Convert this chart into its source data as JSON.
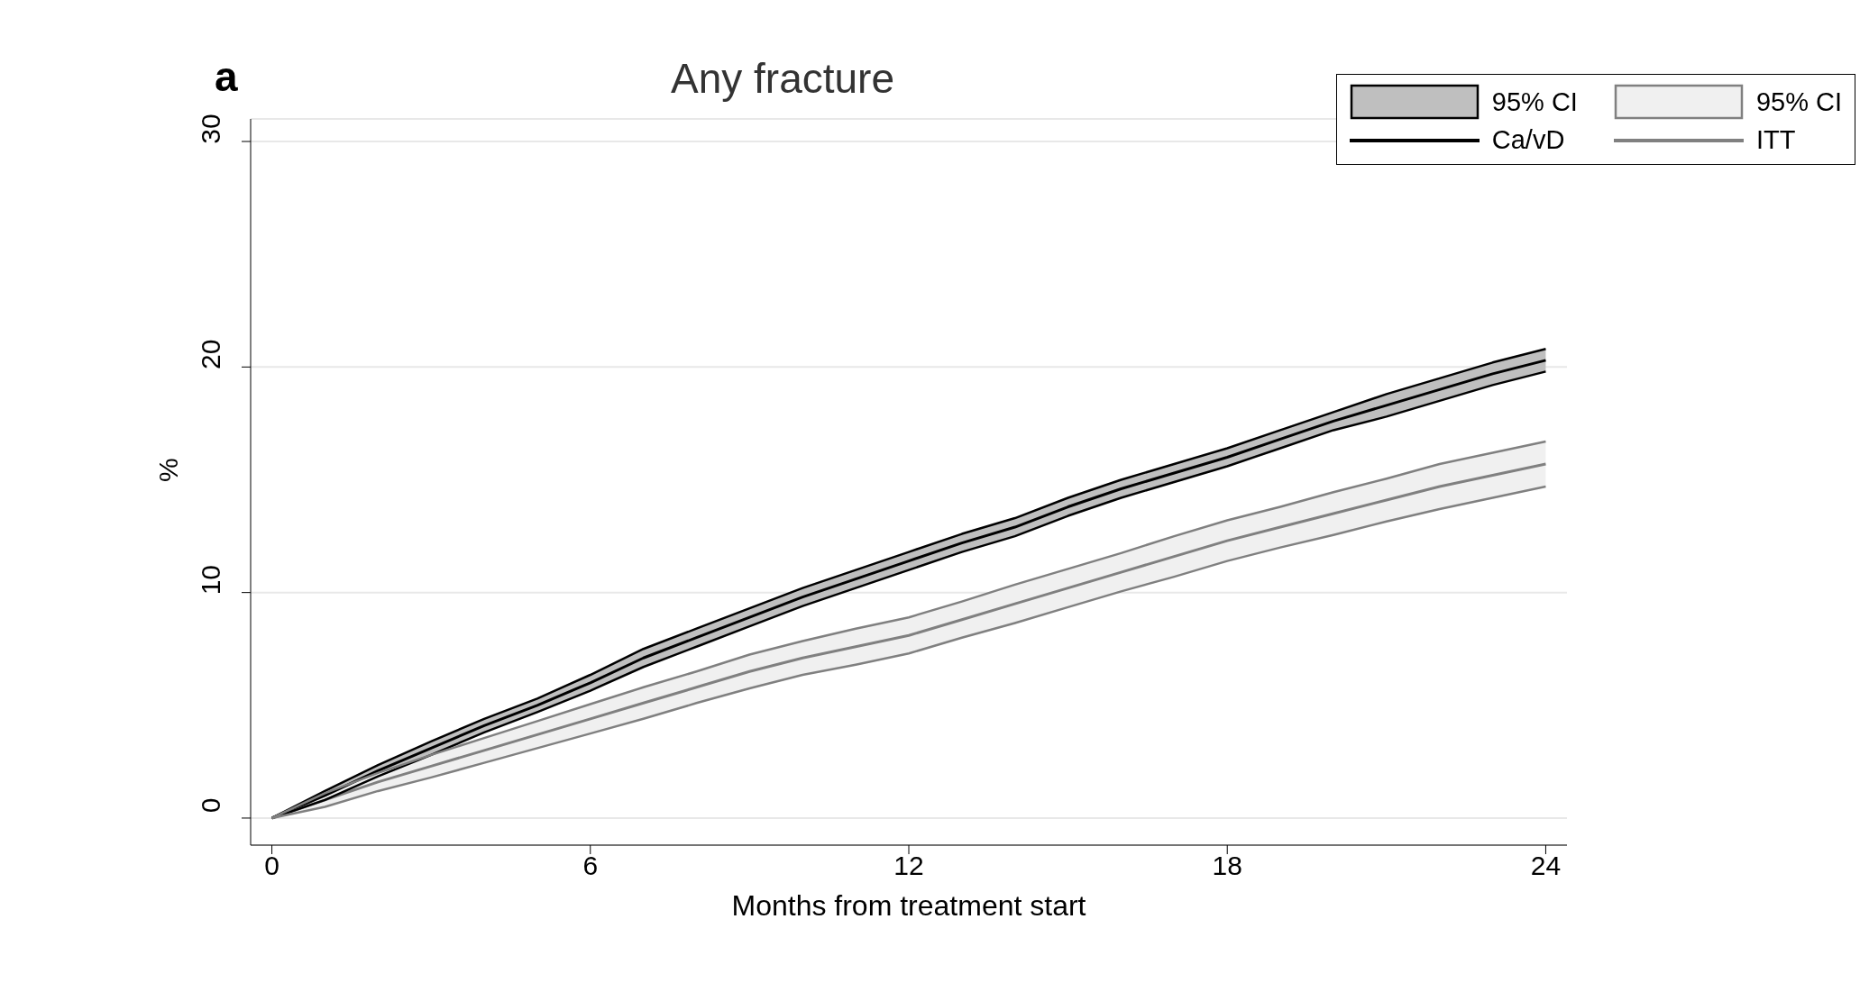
{
  "chart_data": {
    "type": "line",
    "title": "Any fracture",
    "xlabel": "Months from treatment start",
    "ylabel": "%",
    "annotations": [
      "a",
      "95% CI",
      "95% CI"
    ],
    "x": [
      0,
      1,
      2,
      3,
      4,
      5,
      6,
      7,
      8,
      9,
      10,
      11,
      12,
      13,
      14,
      15,
      16,
      17,
      18,
      19,
      20,
      21,
      22,
      23,
      24
    ],
    "xlim": [
      -0.4,
      24.4
    ],
    "xticks": [
      0,
      6,
      12,
      18,
      24
    ],
    "ylim": [
      -1.2,
      31
    ],
    "yticks": [
      0,
      10,
      20,
      30
    ],
    "grid": "y",
    "legend": "top right",
    "series": [
      {
        "name": "Ca/vD",
        "color": "#000000",
        "values": [
          0,
          1.0,
          2.1,
          3.1,
          4.1,
          5.0,
          6.0,
          7.1,
          8.0,
          8.9,
          9.8,
          10.6,
          11.4,
          12.2,
          12.9,
          13.8,
          14.6,
          15.3,
          16.0,
          16.8,
          17.6,
          18.3,
          19.0,
          19.7,
          20.3
        ],
        "lower": [
          0,
          0.8,
          1.85,
          2.8,
          3.8,
          4.7,
          5.65,
          6.7,
          7.6,
          8.5,
          9.4,
          10.2,
          11.0,
          11.8,
          12.5,
          13.4,
          14.2,
          14.9,
          15.6,
          16.4,
          17.2,
          17.8,
          18.5,
          19.2,
          19.8
        ],
        "upper": [
          0,
          1.2,
          2.35,
          3.4,
          4.4,
          5.3,
          6.35,
          7.5,
          8.4,
          9.3,
          10.2,
          11.0,
          11.8,
          12.6,
          13.3,
          14.2,
          15.0,
          15.7,
          16.4,
          17.2,
          18.0,
          18.8,
          19.5,
          20.2,
          20.8
        ]
      },
      {
        "name": "ITT",
        "color": "#808080",
        "values": [
          0,
          0.8,
          1.6,
          2.3,
          3.0,
          3.7,
          4.4,
          5.1,
          5.8,
          6.5,
          7.1,
          7.6,
          8.1,
          8.8,
          9.5,
          10.2,
          10.9,
          11.6,
          12.3,
          12.9,
          13.5,
          14.1,
          14.7,
          15.2,
          15.7
        ],
        "lower": [
          0,
          0.5,
          1.2,
          1.8,
          2.45,
          3.1,
          3.75,
          4.4,
          5.1,
          5.75,
          6.35,
          6.8,
          7.3,
          8.0,
          8.65,
          9.35,
          10.05,
          10.7,
          11.4,
          12.0,
          12.55,
          13.15,
          13.7,
          14.2,
          14.7
        ],
        "upper": [
          0,
          1.1,
          2.0,
          2.8,
          3.55,
          4.3,
          5.05,
          5.8,
          6.5,
          7.25,
          7.85,
          8.4,
          8.9,
          9.6,
          10.35,
          11.05,
          11.75,
          12.5,
          13.2,
          13.8,
          14.45,
          15.05,
          15.7,
          16.2,
          16.7
        ]
      },
      {
        "color": "#000000",
        "values": [
          0,
          0.8,
          1.85,
          2.8,
          3.8,
          4.7,
          5.65,
          6.7,
          7.6,
          8.5,
          9.4,
          10.2,
          11.0,
          11.8,
          12.5,
          13.4,
          14.2,
          14.9,
          15.6,
          16.4,
          17.2,
          17.8,
          18.5,
          19.2,
          19.8
        ]
      },
      {
        "color": "#000000",
        "values": [
          0,
          1.2,
          2.35,
          3.4,
          4.4,
          5.3,
          6.35,
          7.5,
          8.4,
          9.3,
          10.2,
          11.0,
          11.8,
          12.6,
          13.3,
          14.2,
          15.0,
          15.7,
          16.4,
          17.2,
          18.0,
          18.8,
          19.5,
          20.2,
          20.8
        ]
      },
      {
        "color": "#808080",
        "values": [
          0,
          0.5,
          1.2,
          1.8,
          2.45,
          3.1,
          3.75,
          4.4,
          5.1,
          5.75,
          6.35,
          6.8,
          7.3,
          8.0,
          8.65,
          9.35,
          10.05,
          10.7,
          11.4,
          12.0,
          12.55,
          13.15,
          13.7,
          14.2,
          14.7
        ]
      },
      {
        "color": "#808080",
        "values": [
          0,
          1.1,
          2.0,
          2.8,
          3.55,
          4.3,
          5.05,
          5.8,
          6.5,
          7.25,
          7.85,
          8.4,
          8.9,
          9.6,
          10.35,
          11.05,
          11.75,
          12.5,
          13.2,
          13.8,
          14.45,
          15.05,
          15.7,
          16.2,
          16.7
        ]
      }
    ]
  }
}
